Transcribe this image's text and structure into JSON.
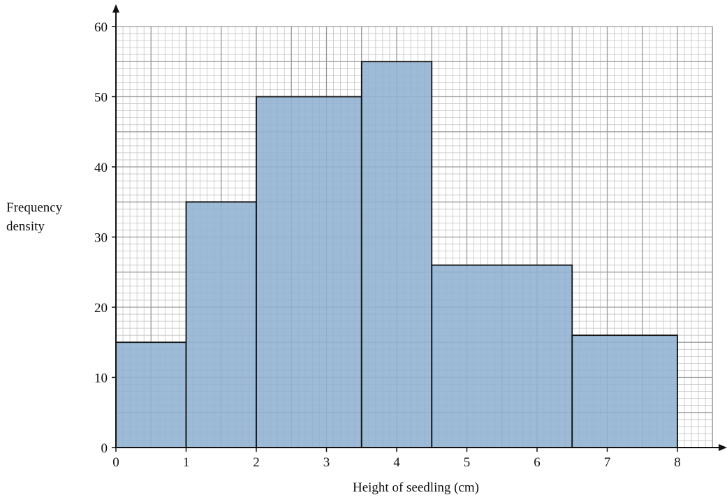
{
  "chart_data": {
    "type": "bar",
    "subtype": "histogram",
    "bins": [
      {
        "start": 0,
        "end": 1,
        "value": 15
      },
      {
        "start": 1,
        "end": 2,
        "value": 35
      },
      {
        "start": 2,
        "end": 3.5,
        "value": 50
      },
      {
        "start": 3.5,
        "end": 4.5,
        "value": 55
      },
      {
        "start": 4.5,
        "end": 6.5,
        "value": 26
      },
      {
        "start": 6.5,
        "end": 8,
        "value": 16
      }
    ],
    "xlabel": "Height of seedling (cm)",
    "ylabel_line1": "Frequency",
    "ylabel_line2": "density",
    "xlim": [
      0,
      8.5
    ],
    "ylim": [
      0,
      60
    ],
    "xticks": [
      0,
      1,
      2,
      3,
      4,
      5,
      6,
      7,
      8
    ],
    "yticks": [
      0,
      10,
      20,
      30,
      40,
      50,
      60
    ],
    "grid": true,
    "bar_color": "#8fb0d0",
    "bar_edge_color": "#111111",
    "major_grid_color": "#9a9a9a",
    "minor_grid_color": "#c4c4c4"
  }
}
